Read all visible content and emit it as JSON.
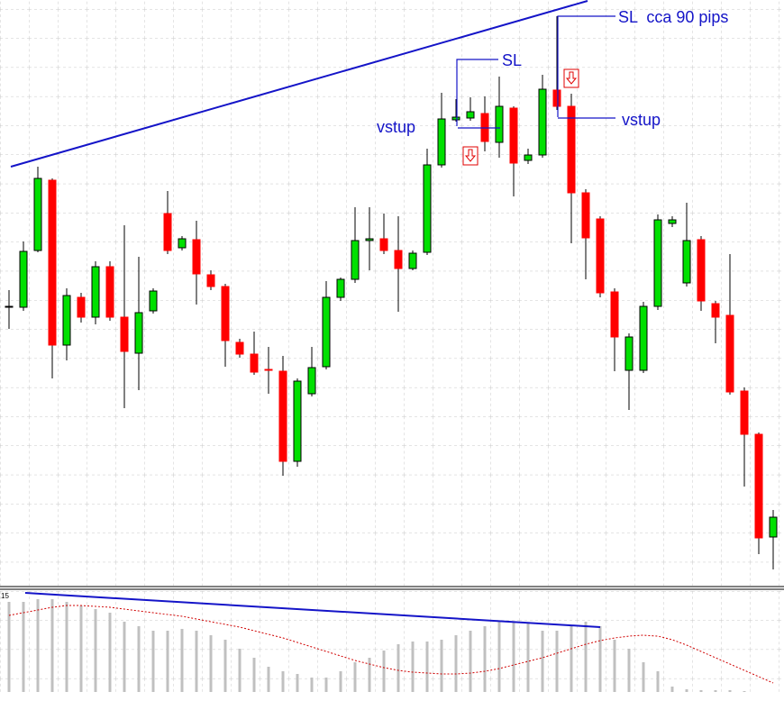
{
  "chart_data": [
    {
      "type": "candlestick",
      "up_color": "#00e000",
      "down_color": "#ff0000",
      "ylim": [
        0,
        650
      ],
      "open": [
        310,
        309,
        372,
        450,
        267,
        320,
        298,
        354,
        298,
        258,
        305,
        413,
        375,
        384,
        345,
        332,
        270,
        257,
        240,
        238,
        138,
        213,
        243,
        320,
        340,
        383,
        385,
        372,
        352,
        370,
        467,
        517,
        519,
        524,
        492,
        530,
        472,
        478,
        550,
        532,
        436,
        407,
        326,
        239,
        239,
        310,
        402,
        336,
        384,
        313,
        300,
        216,
        168,
        54
      ],
      "close": [
        310,
        371,
        452,
        267,
        322,
        298,
        354,
        298,
        260,
        303,
        327,
        372,
        385,
        346,
        332,
        272,
        257,
        237,
        239,
        138,
        227,
        242,
        320,
        340,
        383,
        385,
        372,
        352,
        369,
        467,
        518,
        520,
        526,
        493,
        532,
        469,
        478,
        551,
        532,
        436,
        386,
        325,
        276,
        276,
        310,
        406,
        406,
        383,
        316,
        298,
        215,
        168,
        53,
        76
      ],
      "high": [
        328,
        382,
        465,
        452,
        330,
        325,
        360,
        360,
        400,
        365,
        330,
        438,
        388,
        405,
        350,
        335,
        274,
        282,
        265,
        255,
        230,
        265,
        338,
        342,
        420,
        420,
        413,
        410,
        372,
        485,
        547,
        540,
        542,
        543,
        565,
        532,
        485,
        567,
        632,
        546,
        440,
        410,
        330,
        280,
        315,
        412,
        410,
        425,
        388,
        316,
        368,
        220,
        170,
        84
      ],
      "low": [
        285,
        305,
        370,
        230,
        250,
        292,
        290,
        294,
        197,
        217,
        302,
        368,
        372,
        312,
        328,
        243,
        253,
        234,
        213,
        122,
        132,
        210,
        240,
        316,
        336,
        350,
        368,
        304,
        350,
        367,
        464,
        515,
        516,
        482,
        475,
        432,
        468,
        475,
        528,
        380,
        340,
        320,
        238,
        195,
        236,
        306,
        398,
        332,
        305,
        269,
        212,
        110,
        35,
        18
      ],
      "annotations": [
        "SL",
        "SL  cca 90 pips",
        "vstup",
        "vstup"
      ]
    },
    {
      "type": "bar",
      "scale_label": "15",
      "color": "#c0c0c0",
      "line_color": "#d00000",
      "ylim": [
        0,
        113
      ],
      "values": [
        100,
        100,
        103,
        103,
        100,
        96,
        92,
        88,
        78,
        73,
        68,
        68,
        70,
        68,
        63,
        58,
        48,
        38,
        28,
        23,
        20,
        16,
        16,
        23,
        33,
        38,
        46,
        53,
        56,
        56,
        58,
        63,
        68,
        73,
        78,
        78,
        76,
        68,
        68,
        73,
        78,
        73,
        58,
        48,
        33,
        23,
        6,
        3,
        2,
        2,
        2,
        1,
        0,
        0
      ],
      "line": [
        85,
        88,
        91,
        94,
        96,
        96,
        95,
        94,
        92,
        90,
        88,
        86,
        84,
        81,
        78,
        75,
        72,
        68,
        64,
        60,
        55,
        50,
        45,
        40,
        35,
        31,
        27,
        24,
        22,
        21,
        20,
        20,
        21,
        23,
        26,
        30,
        34,
        38,
        43,
        48,
        53,
        57,
        60,
        62,
        63,
        62,
        58,
        52,
        45,
        38,
        31,
        24,
        17,
        10
      ]
    }
  ]
}
